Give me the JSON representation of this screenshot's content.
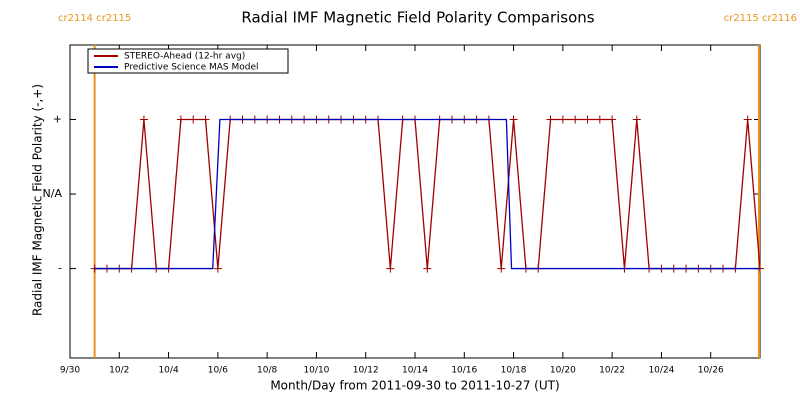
{
  "chart_data": {
    "type": "line",
    "title": "Radial IMF Magnetic Field Polarity Comparisons",
    "xlabel": "Month/Day from 2011-09-30 to 2011-10-27 (UT)",
    "ylabel": "Radial IMF Magnetic Field Polarity (-,+)",
    "xlim": [
      "2011-09-30",
      "2011-10-28"
    ],
    "xticks": [
      {
        "value": "2011-09-30",
        "label": "9/30"
      },
      {
        "value": "2011-10-02",
        "label": "10/2"
      },
      {
        "value": "2011-10-04",
        "label": "10/4"
      },
      {
        "value": "2011-10-06",
        "label": "10/6"
      },
      {
        "value": "2011-10-08",
        "label": "10/8"
      },
      {
        "value": "2011-10-10",
        "label": "10/10"
      },
      {
        "value": "2011-10-12",
        "label": "10/12"
      },
      {
        "value": "2011-10-14",
        "label": "10/14"
      },
      {
        "value": "2011-10-16",
        "label": "10/16"
      },
      {
        "value": "2011-10-18",
        "label": "10/18"
      },
      {
        "value": "2011-10-20",
        "label": "10/20"
      },
      {
        "value": "2011-10-22",
        "label": "10/22"
      },
      {
        "value": "2011-10-24",
        "label": "10/24"
      },
      {
        "value": "2011-10-26",
        "label": "10/26"
      }
    ],
    "ylim": [
      -2.2,
      2
    ],
    "yticks": [
      {
        "value": -1,
        "label": "-"
      },
      {
        "value": 0,
        "label": "N/A"
      },
      {
        "value": 1,
        "label": "+"
      }
    ],
    "legend": "upper left",
    "annotations": [
      {
        "text": "cr2114 cr2115",
        "x": "2011-10-01 00:00",
        "color": "#e8951c"
      },
      {
        "text": "cr2115 cr2116",
        "x": "2011-10-27 23:00",
        "color": "#e8951c"
      }
    ],
    "series": [
      {
        "name": "STEREO-Ahead (12-hr avg)",
        "color": "#a00000",
        "markers": true,
        "x": [
          "2011-10-01 00:00",
          "2011-10-01 12:00",
          "2011-10-02 00:00",
          "2011-10-02 12:00",
          "2011-10-03 00:00",
          "2011-10-03 12:00",
          "2011-10-04 00:00",
          "2011-10-04 12:00",
          "2011-10-05 00:00",
          "2011-10-05 12:00",
          "2011-10-06 00:00",
          "2011-10-06 12:00",
          "2011-10-07 00:00",
          "2011-10-07 12:00",
          "2011-10-08 00:00",
          "2011-10-08 12:00",
          "2011-10-09 00:00",
          "2011-10-09 12:00",
          "2011-10-10 00:00",
          "2011-10-10 12:00",
          "2011-10-11 00:00",
          "2011-10-11 12:00",
          "2011-10-12 00:00",
          "2011-10-12 12:00",
          "2011-10-13 00:00",
          "2011-10-13 12:00",
          "2011-10-14 00:00",
          "2011-10-14 12:00",
          "2011-10-15 00:00",
          "2011-10-15 12:00",
          "2011-10-16 00:00",
          "2011-10-16 12:00",
          "2011-10-17 00:00",
          "2011-10-17 12:00",
          "2011-10-18 00:00",
          "2011-10-18 12:00",
          "2011-10-19 00:00",
          "2011-10-19 12:00",
          "2011-10-20 00:00",
          "2011-10-20 12:00",
          "2011-10-21 00:00",
          "2011-10-21 12:00",
          "2011-10-22 00:00",
          "2011-10-22 12:00",
          "2011-10-23 00:00",
          "2011-10-23 12:00",
          "2011-10-24 00:00",
          "2011-10-24 12:00",
          "2011-10-25 00:00",
          "2011-10-25 12:00",
          "2011-10-26 00:00",
          "2011-10-26 12:00",
          "2011-10-27 00:00",
          "2011-10-27 12:00",
          "2011-10-28 00:00"
        ],
        "values": [
          -1,
          -1,
          -1,
          -1,
          1,
          -1,
          -1,
          1,
          1,
          1,
          -1,
          1,
          1,
          1,
          1,
          1,
          1,
          1,
          1,
          1,
          1,
          1,
          1,
          1,
          -1,
          1,
          1,
          -1,
          1,
          1,
          1,
          1,
          1,
          -1,
          1,
          -1,
          -1,
          1,
          1,
          1,
          1,
          1,
          1,
          -1,
          1,
          -1,
          -1,
          -1,
          -1,
          -1,
          -1,
          -1,
          -1,
          1,
          -1
        ]
      },
      {
        "name": "Predictive Science MAS Model",
        "color": "#0000c0",
        "markers": false,
        "x": [
          "2011-10-01 00:00",
          "2011-10-05 19:00",
          "2011-10-06 02:00",
          "2011-10-17 17:00",
          "2011-10-17 22:00",
          "2011-10-28 00:00"
        ],
        "values": [
          -1,
          -1,
          1,
          1,
          -1,
          -1
        ]
      }
    ]
  }
}
